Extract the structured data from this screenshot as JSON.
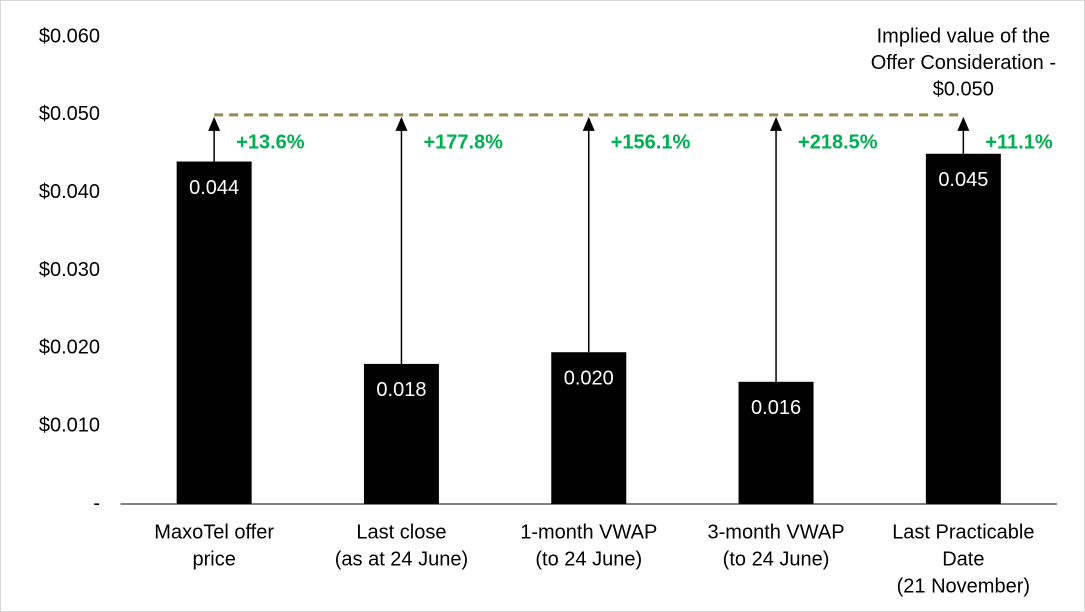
{
  "chart_data": {
    "type": "bar",
    "categories": [
      [
        "MaxoTel offer",
        "price"
      ],
      [
        "Last close",
        "(as at 24 June)"
      ],
      [
        "1-month VWAP",
        "(to 24 June)"
      ],
      [
        "3-month VWAP",
        "(to 24 June)"
      ],
      [
        "Last Practicable",
        "Date",
        "(21 November)"
      ]
    ],
    "values": [
      0.044,
      0.018,
      0.0195,
      0.0157,
      0.045
    ],
    "value_labels": [
      "0.044",
      "0.018",
      "0.020",
      "0.016",
      "0.045"
    ],
    "color": "#000000",
    "ylim": [
      0,
      0.06
    ],
    "yticks": [
      {
        "value": 0,
        "label": "-"
      },
      {
        "value": 0.01,
        "label": "$0.010"
      },
      {
        "value": 0.02,
        "label": "$0.020"
      },
      {
        "value": 0.03,
        "label": "$0.030"
      },
      {
        "value": 0.04,
        "label": "$0.040"
      },
      {
        "value": 0.05,
        "label": "$0.050"
      },
      {
        "value": 0.06,
        "label": "$0.060"
      }
    ],
    "reference_line": {
      "value": 0.05,
      "color": "#948a54",
      "label": [
        "Implied value of the",
        "Offer Consideration -",
        "$0.050"
      ]
    },
    "premium_labels": [
      "+13.6%",
      "+177.8%",
      "+156.1%",
      "+218.5%",
      "+11.1%"
    ],
    "premium_color": "#00b050"
  }
}
